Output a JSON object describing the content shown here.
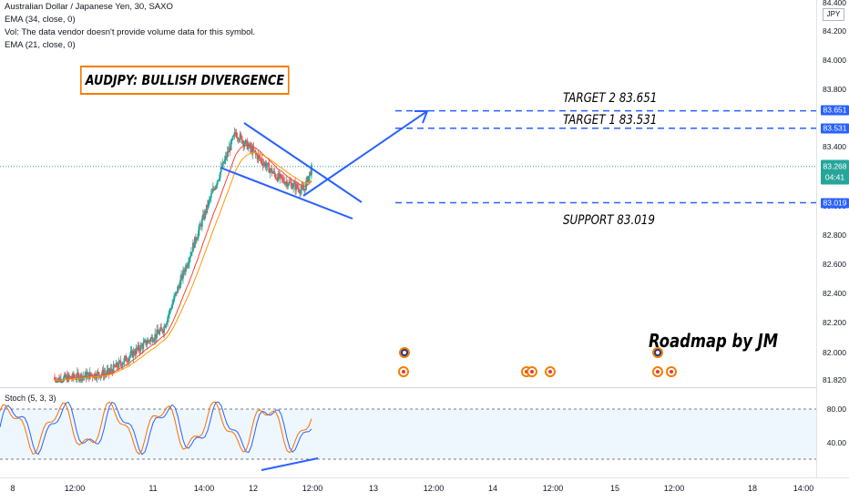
{
  "header": {
    "symbol_line": "Australian Dollar / Japanese Yen, 30, SAXO",
    "ema34": "EMA (34, close, 0)",
    "volume_note": "Vol: The data vendor doesn't provide volume data for this symbol.",
    "ema21": "EMA (21, close, 0)"
  },
  "annotations": {
    "title": "AUDJPY: BULLISH DIVERGENCE",
    "target2": "TARGET 2  83.651",
    "target1": "TARGET 1  83.531",
    "support": "SUPPORT 83.019",
    "author": "Roadmap by JM"
  },
  "price_axis": {
    "currency": "JPY",
    "labels": [
      "84.400",
      "84.200",
      "84.000",
      "83.800",
      "83.400",
      "83.000",
      "82.800",
      "82.600",
      "82.400",
      "82.200",
      "82.000",
      "81.820"
    ],
    "badges": {
      "target2": "83.651",
      "target1": "83.531",
      "current_price": "83.268",
      "countdown": "04:41",
      "support": "83.019"
    }
  },
  "stoch": {
    "label": "Stoch (5, 3, 3)",
    "levels": [
      "80.00",
      "40.00"
    ]
  },
  "time_axis": {
    "labels": [
      "8",
      "12:00",
      "11",
      "14:00",
      "12",
      "12:00",
      "13",
      "12:00",
      "14",
      "12:00",
      "15",
      "12:00",
      "18",
      "14:00"
    ]
  },
  "colors": {
    "candle_up": "#26a69a",
    "candle_down": "#ef5350",
    "ema_fast": "#f44336",
    "ema_slow": "#ff9800",
    "drawing_blue": "#2962ff",
    "stoch_k": "#2962ff",
    "stoch_d": "#ff6d00"
  },
  "event_icons": [
    "flag-icon",
    "economic-event-icon"
  ]
}
